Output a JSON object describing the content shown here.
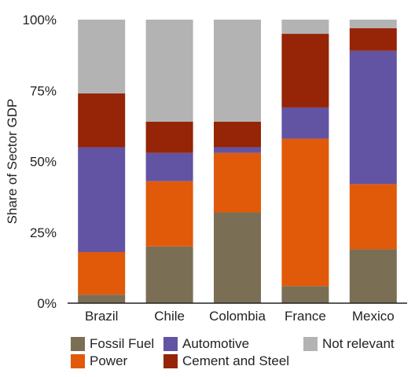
{
  "chart_data": {
    "type": "bar",
    "stacked": true,
    "categories": [
      "Brazil",
      "Chile",
      "Colombia",
      "France",
      "Mexico"
    ],
    "ylabel": "Share of Sector GDP",
    "ylim": [
      0,
      100
    ],
    "yticks": [
      "0%",
      "25%",
      "50%",
      "75%",
      "100%"
    ],
    "grid": false,
    "legend_position": "bottom",
    "series": [
      {
        "name": "Fossil Fuel",
        "color": "#7a6e55",
        "values": [
          3,
          20,
          32,
          6,
          19
        ]
      },
      {
        "name": "Power",
        "color": "#e05a0a",
        "values": [
          15,
          23,
          21,
          52,
          23
        ]
      },
      {
        "name": "Automotive",
        "color": "#6353a3",
        "values": [
          37,
          10,
          2,
          11,
          47
        ]
      },
      {
        "name": "Cement and Steel",
        "color": "#952506",
        "values": [
          19,
          11,
          9,
          26,
          8
        ]
      },
      {
        "name": "Not relevant",
        "color": "#b3b3b3",
        "values": [
          26,
          36,
          36,
          5,
          3
        ]
      }
    ]
  },
  "legend": {
    "fossil_fuel": "Fossil Fuel",
    "power": "Power",
    "automotive": "Automotive",
    "cement_steel": "Cement and Steel",
    "not_relevant": "Not relevant"
  }
}
